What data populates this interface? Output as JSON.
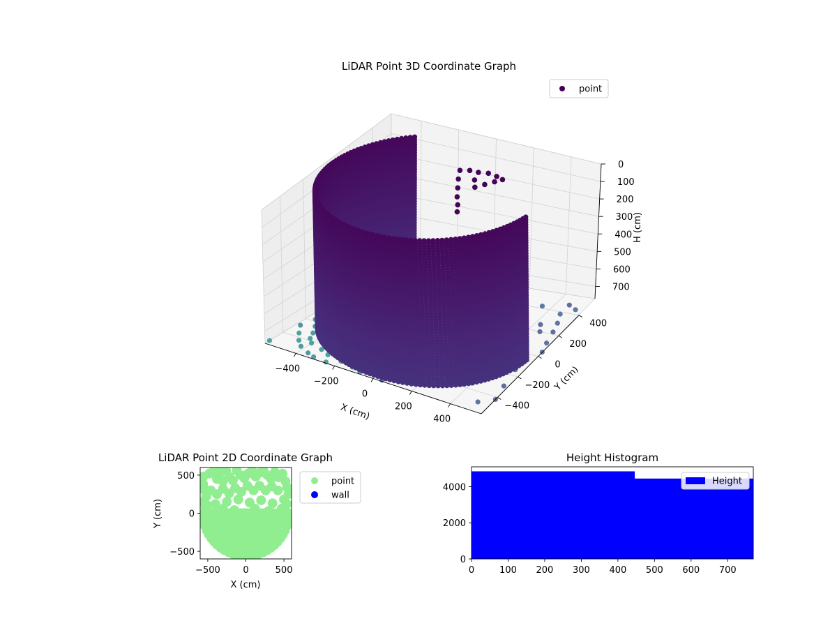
{
  "chart_data": [
    {
      "type": "scatter",
      "projection": "3d",
      "title": "LiDAR Point 3D Coordinate Graph",
      "xlabel": "X (cm)",
      "ylabel": "Y (cm)",
      "zlabel": "H (cm)",
      "xticks": [
        -400,
        -200,
        0,
        200,
        400
      ],
      "yticks": [
        -400,
        -200,
        0,
        200,
        400
      ],
      "zticks": [
        0,
        100,
        200,
        300,
        400,
        500,
        600,
        700
      ],
      "xlim": [
        -560,
        560
      ],
      "ylim": [
        -560,
        560
      ],
      "zlim": [
        0,
        770
      ],
      "z_axis_inverted": true,
      "colormap": "viridis",
      "grid": true,
      "legend": {
        "entries": [
          "point"
        ],
        "placement": "upper-right"
      },
      "series": [
        {
          "name": "point",
          "wall_arc": {
            "radius": 530,
            "angle_start_deg": 130,
            "angle_end_deg": 355,
            "height_range": [
              0,
              770
            ]
          },
          "ceiling_cluster": [
            [
              20,
              210,
              0
            ],
            [
              60,
              230,
              0
            ],
            [
              100,
              240,
              5
            ],
            [
              150,
              245,
              0
            ],
            [
              200,
              235,
              0
            ],
            [
              240,
              220,
              0
            ],
            [
              30,
              180,
              30
            ],
            [
              45,
              150,
              60
            ],
            [
              60,
              120,
              90
            ],
            [
              75,
              100,
              120
            ],
            [
              90,
              70,
              140
            ],
            [
              110,
              190,
              20
            ],
            [
              130,
              160,
              40
            ],
            [
              170,
              180,
              25
            ],
            [
              210,
              200,
              10
            ]
          ],
          "floor_scatter": [
            [
              -520,
              -180,
              770
            ],
            [
              -480,
              -250,
              770
            ],
            [
              -450,
              -320,
              770
            ],
            [
              -430,
              -380,
              770
            ],
            [
              -400,
              -420,
              770
            ],
            [
              -380,
              -300,
              770
            ],
            [
              -350,
              -350,
              770
            ],
            [
              -330,
              -450,
              770
            ],
            [
              -300,
              -400,
              770
            ],
            [
              -280,
              -480,
              770
            ],
            [
              -260,
              -320,
              770
            ],
            [
              -240,
              -380,
              770
            ],
            [
              -220,
              -440,
              770
            ],
            [
              -200,
              -500,
              770
            ],
            [
              -180,
              -360,
              770
            ],
            [
              -160,
              -420,
              770
            ],
            [
              -150,
              -470,
              770
            ],
            [
              -130,
              -520,
              770
            ],
            [
              -110,
              -390,
              770
            ],
            [
              -100,
              -450,
              770
            ],
            [
              -80,
              -540,
              770
            ],
            [
              -60,
              -400,
              770
            ],
            [
              -40,
              -470,
              770
            ],
            [
              -20,
              -520,
              770
            ],
            [
              0,
              -440,
              770
            ],
            [
              20,
              -500,
              770
            ],
            [
              40,
              -550,
              770
            ],
            [
              -420,
              -480,
              770
            ],
            [
              -460,
              -430,
              770
            ],
            [
              -500,
              -360,
              770
            ],
            [
              -540,
              -280,
              770
            ],
            [
              -360,
              -520,
              770
            ],
            [
              -320,
              -540,
              770
            ],
            [
              -250,
              -550,
              770
            ],
            [
              -560,
              -520,
              770
            ],
            [
              -300,
              -250,
              770
            ],
            [
              -200,
              -280,
              770
            ],
            [
              -100,
              -300,
              770
            ],
            [
              -420,
              -200,
              770
            ],
            [
              -340,
              -180,
              770
            ],
            [
              100,
              -300,
              770
            ],
            [
              150,
              -150,
              770
            ],
            [
              300,
              -200,
              770
            ],
            [
              380,
              50,
              770
            ],
            [
              420,
              120,
              770
            ],
            [
              460,
              200,
              770
            ],
            [
              500,
              300,
              770
            ],
            [
              470,
              380,
              770
            ],
            [
              430,
              260,
              770
            ],
            [
              520,
              220,
              770
            ],
            [
              540,
              120,
              770
            ],
            [
              480,
              -50,
              770
            ],
            [
              520,
              -150,
              770
            ],
            [
              450,
              -260,
              770
            ],
            [
              400,
              -350,
              770
            ],
            [
              560,
              40,
              770
            ],
            [
              300,
              350,
              770
            ],
            [
              250,
              420,
              770
            ],
            [
              200,
              380,
              770
            ],
            [
              350,
              420,
              770
            ],
            [
              540,
              -300,
              770
            ],
            [
              560,
              -420,
              770
            ],
            [
              500,
              -480,
              770
            ],
            [
              520,
              440,
              770
            ],
            [
              470,
              470,
              770
            ]
          ]
        }
      ]
    },
    {
      "type": "scatter",
      "title": "LiDAR Point 2D Coordinate Graph",
      "xlabel": "X (cm)",
      "ylabel": "Y (cm)",
      "xticks": [
        -500,
        0,
        500
      ],
      "yticks": [
        -500,
        0,
        500
      ],
      "xlim": [
        -600,
        600
      ],
      "ylim": [
        -600,
        600
      ],
      "legend": {
        "entries": [
          "point",
          "wall"
        ],
        "placement": "outside-right"
      },
      "series": [
        {
          "name": "point",
          "color": "#90ee90",
          "points": [
            [
              -560,
              480
            ],
            [
              -560,
              380
            ],
            [
              -540,
              300
            ],
            [
              -520,
              220
            ],
            [
              -560,
              150
            ],
            [
              -530,
              80
            ],
            [
              -560,
              0
            ],
            [
              -480,
              520
            ],
            [
              -420,
              560
            ],
            [
              -380,
              450
            ],
            [
              -330,
              540
            ],
            [
              -300,
              420
            ],
            [
              -260,
              560
            ],
            [
              -220,
              480
            ],
            [
              -170,
              430
            ],
            [
              -120,
              560
            ],
            [
              -70,
              500
            ],
            [
              -20,
              460
            ],
            [
              30,
              520
            ],
            [
              80,
              560
            ],
            [
              130,
              480
            ],
            [
              180,
              530
            ],
            [
              230,
              560
            ],
            [
              280,
              500
            ],
            [
              330,
              450
            ],
            [
              380,
              540
            ],
            [
              430,
              470
            ],
            [
              480,
              520
            ],
            [
              520,
              420
            ],
            [
              540,
              340
            ],
            [
              560,
              250
            ],
            [
              500,
              180
            ],
            [
              540,
              120
            ],
            [
              470,
              60
            ],
            [
              560,
              -30
            ],
            [
              -460,
              300
            ],
            [
              -380,
              250
            ],
            [
              -300,
              320
            ],
            [
              -220,
              260
            ],
            [
              -140,
              330
            ],
            [
              -60,
              280
            ],
            [
              20,
              360
            ],
            [
              100,
              300
            ],
            [
              180,
              360
            ],
            [
              260,
              300
            ],
            [
              340,
              350
            ],
            [
              420,
              300
            ],
            [
              -400,
              120
            ],
            [
              -250,
              150
            ],
            [
              -100,
              180
            ],
            [
              50,
              140
            ],
            [
              200,
              170
            ],
            [
              350,
              130
            ],
            [
              -500,
              100
            ],
            [
              480,
              20
            ],
            [
              -300,
              60
            ],
            [
              120,
              60
            ],
            [
              -150,
              40
            ],
            [
              300,
              30
            ]
          ],
          "filled_region": {
            "center": [
              0,
              0
            ],
            "radius": 560,
            "angle_range_deg": [
              180,
              360
            ]
          }
        },
        {
          "name": "wall",
          "color": "#0000ff",
          "points": []
        }
      ]
    },
    {
      "type": "histogram",
      "title": "Height Histogram",
      "xticks": [
        0,
        100,
        200,
        300,
        400,
        500,
        600,
        700
      ],
      "yticks": [
        0,
        2000,
        4000
      ],
      "xlim": [
        0,
        770
      ],
      "ylim": [
        0,
        5100
      ],
      "legend": {
        "entries": [
          "Height"
        ],
        "placement": "upper-right"
      },
      "series": [
        {
          "name": "Height",
          "color": "#0000ff",
          "bins": [
            {
              "x0": 0,
              "x1": 446,
              "count": 4850
            },
            {
              "x0": 446,
              "x1": 770,
              "count": 4450
            }
          ]
        }
      ]
    }
  ]
}
